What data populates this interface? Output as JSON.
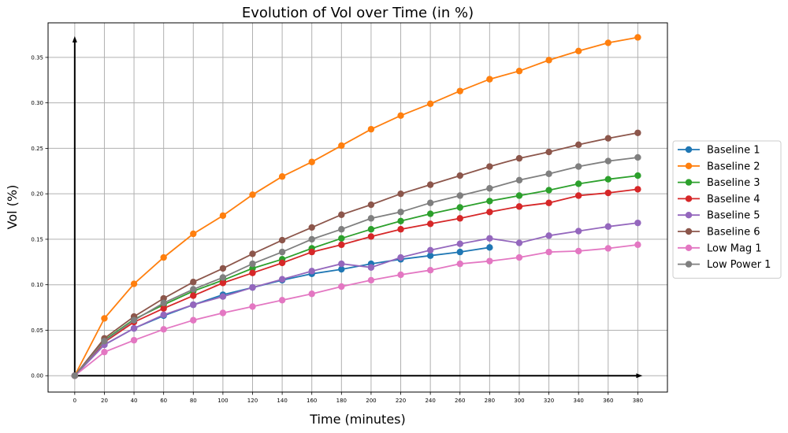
{
  "chart_data": {
    "type": "line",
    "title": "Evolution of Vol over Time (in %)",
    "xlabel": "Time (minutes)",
    "ylabel": "Vol (%)",
    "xlim": [
      -18,
      400
    ],
    "ylim": [
      -0.018,
      0.388
    ],
    "xticks": [
      0,
      20,
      40,
      60,
      80,
      100,
      120,
      140,
      160,
      180,
      200,
      220,
      240,
      260,
      280,
      300,
      320,
      340,
      360,
      380
    ],
    "xtick_labels": [
      "0",
      "20",
      "40",
      "60",
      "80",
      "100",
      "120",
      "140",
      "160",
      "180",
      "200",
      "220",
      "240",
      "260",
      "280",
      "300",
      "320",
      "340",
      "360",
      "380"
    ],
    "yticks": [
      0,
      0.05,
      0.1,
      0.15,
      0.2,
      0.25,
      0.3,
      0.35
    ],
    "ytick_labels": [
      "0.00",
      "0.05",
      "0.10",
      "0.15",
      "0.20",
      "0.25",
      "0.30",
      "0.35"
    ],
    "grid": true,
    "legend_position": "outside-right",
    "series": [
      {
        "name": "Baseline 1",
        "color": "#1f77b4",
        "x": [
          0,
          20,
          40,
          60,
          80,
          100,
          120,
          140,
          160,
          180,
          200,
          220,
          240,
          260,
          280
        ],
        "values": [
          0,
          0.034,
          0.052,
          0.066,
          0.078,
          0.089,
          0.097,
          0.105,
          0.112,
          0.117,
          0.123,
          0.128,
          0.132,
          0.136,
          0.141
        ]
      },
      {
        "name": "Baseline 2",
        "color": "#ff7f0e",
        "x": [
          0,
          20,
          40,
          60,
          80,
          100,
          120,
          140,
          160,
          180,
          200,
          220,
          240,
          260,
          280,
          300,
          320,
          340,
          360,
          380
        ],
        "values": [
          0,
          0.063,
          0.101,
          0.13,
          0.156,
          0.176,
          0.199,
          0.219,
          0.235,
          0.253,
          0.271,
          0.286,
          0.299,
          0.313,
          0.326,
          0.335,
          0.347,
          0.357,
          0.366,
          0.372
        ]
      },
      {
        "name": "Baseline 3",
        "color": "#2ca02c",
        "x": [
          0,
          20,
          40,
          60,
          80,
          100,
          120,
          140,
          160,
          180,
          200,
          220,
          240,
          260,
          280,
          300,
          320,
          340,
          360,
          380
        ],
        "values": [
          0,
          0.039,
          0.062,
          0.078,
          0.093,
          0.105,
          0.118,
          0.128,
          0.14,
          0.151,
          0.161,
          0.17,
          0.178,
          0.185,
          0.192,
          0.198,
          0.204,
          0.211,
          0.216,
          0.22
        ]
      },
      {
        "name": "Baseline 4",
        "color": "#d62728",
        "x": [
          0,
          20,
          40,
          60,
          80,
          100,
          120,
          140,
          160,
          180,
          200,
          220,
          240,
          260,
          280,
          300,
          320,
          340,
          360,
          380
        ],
        "values": [
          0,
          0.037,
          0.059,
          0.074,
          0.088,
          0.102,
          0.113,
          0.124,
          0.136,
          0.144,
          0.153,
          0.161,
          0.167,
          0.173,
          0.18,
          0.186,
          0.19,
          0.198,
          0.201,
          0.205
        ]
      },
      {
        "name": "Baseline 5",
        "color": "#9467bd",
        "x": [
          0,
          20,
          40,
          60,
          80,
          100,
          120,
          140,
          160,
          180,
          200,
          220,
          240,
          260,
          280,
          300,
          320,
          340,
          360,
          380
        ],
        "values": [
          0,
          0.034,
          0.052,
          0.067,
          0.078,
          0.087,
          0.097,
          0.106,
          0.115,
          0.123,
          0.119,
          0.13,
          0.138,
          0.145,
          0.151,
          0.146,
          0.154,
          0.159,
          0.164,
          0.168
        ]
      },
      {
        "name": "Baseline 6",
        "color": "#8c564b",
        "x": [
          0,
          20,
          40,
          60,
          80,
          100,
          120,
          140,
          160,
          180,
          200,
          220,
          240,
          260,
          280,
          300,
          320,
          340,
          360,
          380
        ],
        "values": [
          0,
          0.041,
          0.065,
          0.085,
          0.103,
          0.118,
          0.134,
          0.149,
          0.163,
          0.177,
          0.188,
          0.2,
          0.21,
          0.22,
          0.23,
          0.239,
          0.246,
          0.254,
          0.261,
          0.267
        ]
      },
      {
        "name": "Low Mag 1",
        "color": "#e377c2",
        "x": [
          0,
          20,
          40,
          60,
          80,
          100,
          120,
          140,
          160,
          180,
          200,
          220,
          240,
          260,
          280,
          300,
          320,
          340,
          360,
          380
        ],
        "values": [
          0,
          0.026,
          0.039,
          0.051,
          0.061,
          0.069,
          0.076,
          0.083,
          0.09,
          0.098,
          0.105,
          0.111,
          0.116,
          0.123,
          0.126,
          0.13,
          0.136,
          0.137,
          0.14,
          0.144
        ]
      },
      {
        "name": "Low Power 1",
        "color": "#7f7f7f",
        "x": [
          0,
          20,
          40,
          60,
          80,
          100,
          120,
          140,
          160,
          180,
          200,
          220,
          240,
          260,
          280,
          300,
          320,
          340,
          360,
          380
        ],
        "values": [
          0,
          0.038,
          0.061,
          0.08,
          0.095,
          0.108,
          0.123,
          0.136,
          0.15,
          0.161,
          0.173,
          0.18,
          0.19,
          0.198,
          0.206,
          0.215,
          0.222,
          0.23,
          0.236,
          0.24
        ]
      }
    ]
  }
}
